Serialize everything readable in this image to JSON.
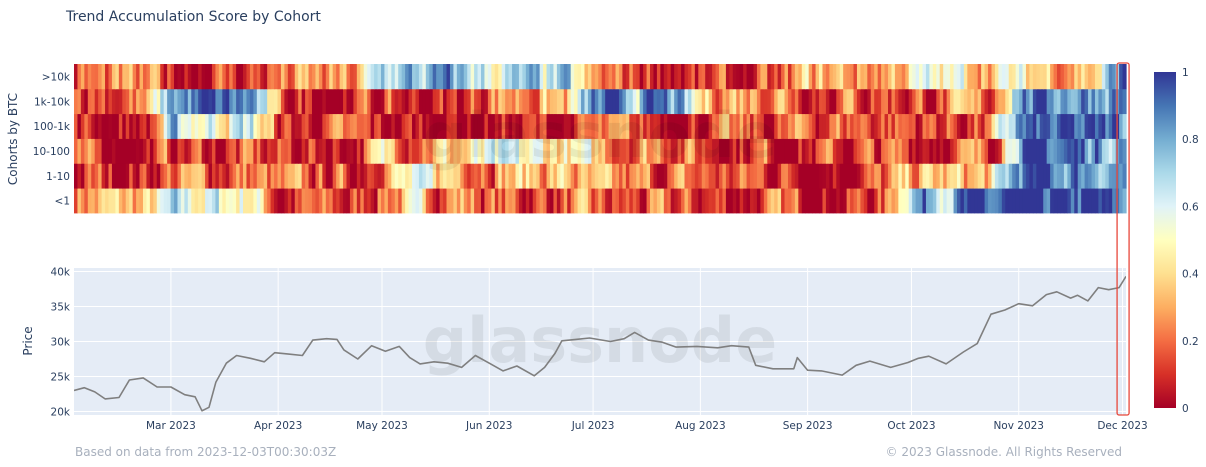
{
  "title": "Trend Accumulation Score by Cohort",
  "footer": {
    "left": "Based on data from 2023-12-03T00:30:03Z",
    "right": "© 2023 Glassnode. All Rights Reserved"
  },
  "watermark": "glassnode",
  "colors": {
    "price_line": "#7f7f7f",
    "price_bg": "#e5ecf6",
    "highlight_box": "#e8473b",
    "colorscale": [
      "#a50026",
      "#d73027",
      "#f46d43",
      "#fdae61",
      "#fee090",
      "#ffffbf",
      "#e0f3f8",
      "#abd9e9",
      "#74add1",
      "#4575b4",
      "#313695"
    ]
  },
  "chart_data": [
    {
      "type": "heatmap",
      "ylabel": "Cohorts by BTC",
      "categories": [
        "<1",
        "1-10",
        "10-100",
        "100-1k",
        "1k-10k",
        ">10k"
      ],
      "x_start": "2023-02-01",
      "x_end": "2023-12-02",
      "zlim": [
        0,
        1
      ],
      "colorbar_ticks": [
        "0",
        "0.2",
        "0.4",
        "0.6",
        "0.8",
        "1"
      ],
      "monthly_values": {
        ">10k": [
          0.15,
          0.12,
          0.2,
          0.72,
          0.6,
          0.15,
          0.03,
          0.3,
          0.45,
          0.4,
          0.9
        ],
        "1k-10k": [
          0.2,
          0.85,
          0.1,
          0.05,
          0.3,
          0.8,
          0.35,
          0.2,
          0.15,
          0.9,
          0.9
        ],
        "100-1k": [
          0.05,
          0.6,
          0.08,
          0.03,
          0.03,
          0.1,
          0.1,
          0.2,
          0.15,
          0.85,
          0.88
        ],
        "10-100": [
          0.05,
          0.1,
          0.1,
          0.35,
          0.45,
          0.3,
          0.15,
          0.1,
          0.15,
          0.9,
          0.88
        ],
        "1-10": [
          0.1,
          0.2,
          0.12,
          0.4,
          0.35,
          0.15,
          0.15,
          0.1,
          0.3,
          0.9,
          0.85
        ],
        "<1": [
          0.3,
          0.55,
          0.1,
          0.3,
          0.15,
          0.1,
          0.1,
          0.1,
          0.85,
          0.92,
          0.8
        ]
      }
    },
    {
      "type": "line",
      "ylabel": "Price",
      "ylim": [
        19500,
        40500
      ],
      "y_ticks": [
        20000,
        25000,
        30000,
        35000,
        40000
      ],
      "y_tick_labels": [
        "20k",
        "25k",
        "30k",
        "35k",
        "40k"
      ],
      "x_tick_labels": [
        "Mar 2023",
        "Apr 2023",
        "May 2023",
        "Jun 2023",
        "Jul 2023",
        "Aug 2023",
        "Sep 2023",
        "Oct 2023",
        "Nov 2023",
        "Dec 2023"
      ],
      "x_ticks": [
        "2023-03-01",
        "2023-04-01",
        "2023-05-01",
        "2023-06-01",
        "2023-07-01",
        "2023-08-01",
        "2023-09-01",
        "2023-10-01",
        "2023-11-01",
        "2023-12-01"
      ],
      "series": [
        {
          "points": [
            [
              "2023-02-01",
              23000
            ],
            [
              "2023-02-04",
              23400
            ],
            [
              "2023-02-07",
              22800
            ],
            [
              "2023-02-10",
              21800
            ],
            [
              "2023-02-14",
              22000
            ],
            [
              "2023-02-17",
              24500
            ],
            [
              "2023-02-21",
              24800
            ],
            [
              "2023-02-25",
              23500
            ],
            [
              "2023-03-01",
              23500
            ],
            [
              "2023-03-05",
              22400
            ],
            [
              "2023-03-08",
              22100
            ],
            [
              "2023-03-10",
              20100
            ],
            [
              "2023-03-12",
              20600
            ],
            [
              "2023-03-14",
              24200
            ],
            [
              "2023-03-17",
              26900
            ],
            [
              "2023-03-20",
              28000
            ],
            [
              "2023-03-24",
              27600
            ],
            [
              "2023-03-28",
              27100
            ],
            [
              "2023-03-31",
              28400
            ],
            [
              "2023-04-04",
              28200
            ],
            [
              "2023-04-08",
              28000
            ],
            [
              "2023-04-11",
              30200
            ],
            [
              "2023-04-15",
              30400
            ],
            [
              "2023-04-18",
              30300
            ],
            [
              "2023-04-20",
              28800
            ],
            [
              "2023-04-24",
              27500
            ],
            [
              "2023-04-28",
              29400
            ],
            [
              "2023-05-02",
              28600
            ],
            [
              "2023-05-06",
              29300
            ],
            [
              "2023-05-09",
              27700
            ],
            [
              "2023-05-12",
              26800
            ],
            [
              "2023-05-16",
              27100
            ],
            [
              "2023-05-20",
              26900
            ],
            [
              "2023-05-24",
              26300
            ],
            [
              "2023-05-28",
              28000
            ],
            [
              "2023-06-01",
              26900
            ],
            [
              "2023-06-05",
              25800
            ],
            [
              "2023-06-09",
              26500
            ],
            [
              "2023-06-14",
              25100
            ],
            [
              "2023-06-17",
              26300
            ],
            [
              "2023-06-20",
              28300
            ],
            [
              "2023-06-22",
              30100
            ],
            [
              "2023-06-26",
              30300
            ],
            [
              "2023-06-30",
              30500
            ],
            [
              "2023-07-06",
              30000
            ],
            [
              "2023-07-10",
              30400
            ],
            [
              "2023-07-13",
              31300
            ],
            [
              "2023-07-17",
              30200
            ],
            [
              "2023-07-21",
              29900
            ],
            [
              "2023-07-25",
              29200
            ],
            [
              "2023-07-31",
              29300
            ],
            [
              "2023-08-06",
              29100
            ],
            [
              "2023-08-10",
              29400
            ],
            [
              "2023-08-15",
              29200
            ],
            [
              "2023-08-17",
              26600
            ],
            [
              "2023-08-22",
              26100
            ],
            [
              "2023-08-28",
              26100
            ],
            [
              "2023-08-29",
              27700
            ],
            [
              "2023-09-01",
              25900
            ],
            [
              "2023-09-05",
              25800
            ],
            [
              "2023-09-11",
              25200
            ],
            [
              "2023-09-15",
              26600
            ],
            [
              "2023-09-19",
              27200
            ],
            [
              "2023-09-25",
              26300
            ],
            [
              "2023-09-30",
              27000
            ],
            [
              "2023-10-03",
              27600
            ],
            [
              "2023-10-06",
              27900
            ],
            [
              "2023-10-11",
              26800
            ],
            [
              "2023-10-16",
              28500
            ],
            [
              "2023-10-20",
              29700
            ],
            [
              "2023-10-24",
              33900
            ],
            [
              "2023-10-28",
              34500
            ],
            [
              "2023-11-01",
              35400
            ],
            [
              "2023-11-05",
              35100
            ],
            [
              "2023-11-09",
              36700
            ],
            [
              "2023-11-12",
              37100
            ],
            [
              "2023-11-16",
              36200
            ],
            [
              "2023-11-18",
              36600
            ],
            [
              "2023-11-21",
              35800
            ],
            [
              "2023-11-24",
              37700
            ],
            [
              "2023-11-27",
              37400
            ],
            [
              "2023-11-30",
              37700
            ],
            [
              "2023-12-02",
              39300
            ]
          ]
        }
      ],
      "highlight_start": "2023-11-30",
      "highlight_end": "2023-12-02"
    }
  ]
}
